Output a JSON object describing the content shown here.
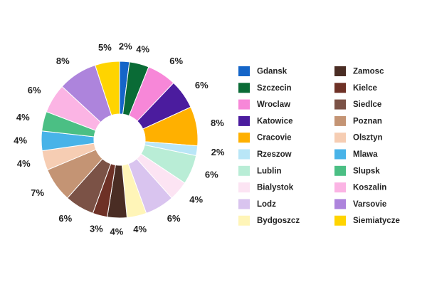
{
  "chart_data": {
    "type": "pie",
    "variant": "donut",
    "title": "",
    "labels_format": "percent",
    "legend_placement": "right",
    "legend_columns": 2,
    "categories": [
      "Gdansk",
      "Szczecin",
      "Wroclaw",
      "Katowice",
      "Cracovie",
      "Rzeszow",
      "Lublin",
      "Bialystok",
      "Lodz",
      "Bydgoszcz",
      "Zamosc",
      "Kielce",
      "Siedlce",
      "Poznan",
      "Olsztyn",
      "Mlawa",
      "Slupsk",
      "Koszalin",
      "Varsovie",
      "Siemiatycze"
    ],
    "values": [
      2,
      4,
      6,
      6,
      8,
      2,
      6,
      4,
      6,
      4,
      4,
      3,
      6,
      7,
      4,
      4,
      4,
      6,
      8,
      5
    ],
    "value_labels": [
      "2%",
      "4%",
      "6%",
      "6%",
      "8%",
      "2%",
      "6%",
      "4%",
      "6%",
      "4%",
      "4%",
      "3%",
      "6%",
      "7%",
      "4%",
      "4%",
      "4%",
      "6%",
      "8%",
      "5%"
    ],
    "colors": [
      "#1565c8",
      "#0a6b36",
      "#f787d8",
      "#4b1c9e",
      "#ffb000",
      "#b9e6f7",
      "#b9edd6",
      "#fce4f3",
      "#d9c4ef",
      "#fff5b8",
      "#4a2d24",
      "#6e3126",
      "#7b5246",
      "#c49474",
      "#f6cdb3",
      "#48b3e8",
      "#4bbf84",
      "#fbb4e4",
      "#ad84dc",
      "#ffd400"
    ]
  }
}
